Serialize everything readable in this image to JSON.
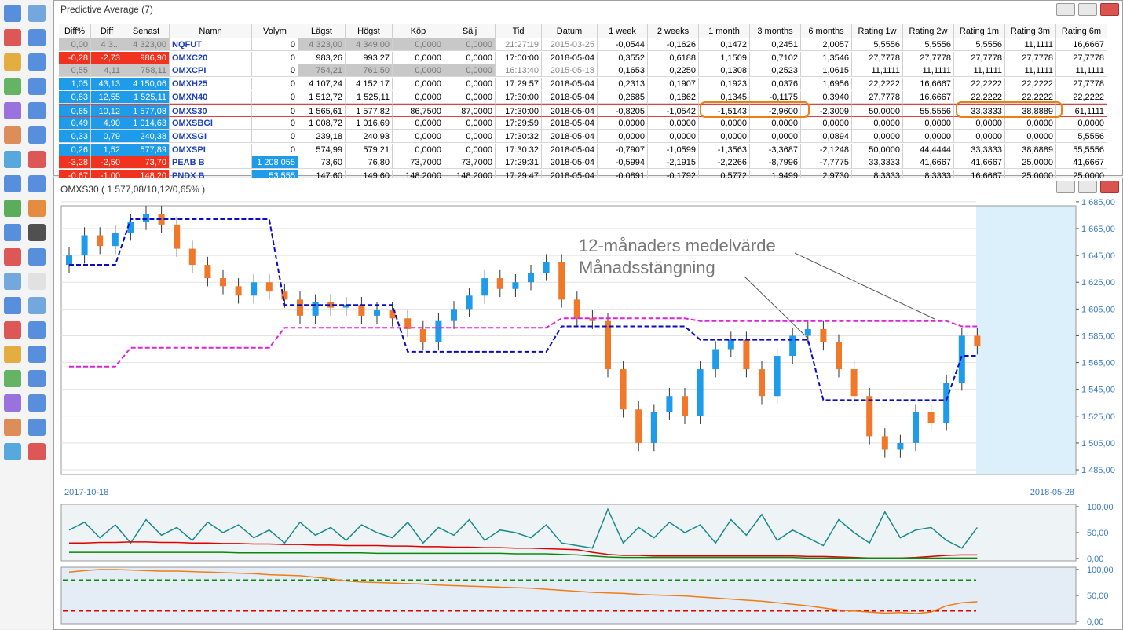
{
  "window": {
    "title": "Predictive Average (7)"
  },
  "table": {
    "columns": [
      "Diff%",
      "Diff",
      "Senast",
      "Namn",
      "Volym",
      "Lägst",
      "Högst",
      "Köp",
      "Sälj",
      "Tid",
      "Datum",
      "1 week",
      "2 weeks",
      "1 month",
      "3 months",
      "6 months",
      "Rating 1w",
      "Rating 2w",
      "Rating 1m",
      "Rating 3m",
      "Rating 6m"
    ],
    "rows": [
      [
        "0,00",
        "4 3...",
        "4 323,00",
        "NQFUT",
        "0",
        "4 323,00",
        "4 349,00",
        "0,0000",
        "0,0000",
        "21:27:19",
        "2015-03-25",
        "-0,0544",
        "-0,1626",
        "0,1472",
        "0,2451",
        "2,0057",
        "5,5556",
        "5,5556",
        "5,5556",
        "11,1111",
        "16,6667"
      ],
      [
        "-0,28",
        "-2,73",
        "986,90",
        "OMXC20",
        "0",
        "983,26",
        "993,27",
        "0,0000",
        "0,0000",
        "17:00:00",
        "2018-05-04",
        "0,3552",
        "0,6188",
        "1,1509",
        "0,7102",
        "1,3546",
        "27,7778",
        "27,7778",
        "27,7778",
        "27,7778",
        "27,7778"
      ],
      [
        "0,55",
        "4,11",
        "758,11",
        "OMXCPI",
        "0",
        "754,21",
        "761,50",
        "0,0000",
        "0,0000",
        "16:13:40",
        "2015-05-18",
        "0,1653",
        "0,2250",
        "0,1308",
        "0,2523",
        "1,0615",
        "11,1111",
        "11,1111",
        "11,1111",
        "11,1111",
        "11,1111"
      ],
      [
        "1,05",
        "43,13",
        "4 150,06",
        "OMXH25",
        "0",
        "4 107,24",
        "4 152,17",
        "0,0000",
        "0,0000",
        "17:29:57",
        "2018-05-04",
        "0,2313",
        "0,1907",
        "0,1923",
        "0,0376",
        "1,6956",
        "22,2222",
        "16,6667",
        "22,2222",
        "22,2222",
        "27,7778"
      ],
      [
        "0,83",
        "12,55",
        "1 525,11",
        "OMXN40",
        "0",
        "1 512,72",
        "1 525,11",
        "0,0000",
        "0,0000",
        "17:30:00",
        "2018-05-04",
        "0,2685",
        "0,1862",
        "0,1345",
        "-0,1175",
        "0,3940",
        "27,7778",
        "16,6667",
        "22,2222",
        "22,2222",
        "22,2222"
      ],
      [
        "0,65",
        "10,12",
        "1 577,08",
        "OMXS30",
        "0",
        "1 565,61",
        "1 577,82",
        "86,7500",
        "87,0000",
        "17:30:00",
        "2018-05-04",
        "-0,8205",
        "-1,0542",
        "-1,5143",
        "-2,9600",
        "-2,3009",
        "50,0000",
        "55,5556",
        "33,3333",
        "38,8889",
        "61,1111"
      ],
      [
        "0,49",
        "4,90",
        "1 014,63",
        "OMXSBGI",
        "0",
        "1 008,72",
        "1 016,69",
        "0,0000",
        "0,0000",
        "17:29:59",
        "2018-05-04",
        "0,0000",
        "0,0000",
        "0,0000",
        "0,0000",
        "0,0000",
        "0,0000",
        "0,0000",
        "0,0000",
        "0,0000",
        "0,0000"
      ],
      [
        "0,33",
        "0,79",
        "240,38",
        "OMXSGI",
        "0",
        "239,18",
        "240,93",
        "0,0000",
        "0,0000",
        "17:30:32",
        "2018-05-04",
        "0,0000",
        "0,0000",
        "0,0000",
        "0,0000",
        "0,0894",
        "0,0000",
        "0,0000",
        "0,0000",
        "0,0000",
        "5,5556"
      ],
      [
        "0,26",
        "1,52",
        "577,89",
        "OMXSPI",
        "0",
        "574,99",
        "579,21",
        "0,0000",
        "0,0000",
        "17:30:32",
        "2018-05-04",
        "-0,7907",
        "-1,0599",
        "-1,3563",
        "-3,3687",
        "-2,1248",
        "50,0000",
        "44,4444",
        "33,3333",
        "38,8889",
        "55,5556"
      ],
      [
        "-3,28",
        "-2,50",
        "73,70",
        "PEAB B",
        "1 208 055",
        "73,60",
        "76,80",
        "73,7000",
        "73,7000",
        "17:29:31",
        "2018-05-04",
        "-0,5994",
        "-2,1915",
        "-2,2266",
        "-8,7996",
        "-7,7775",
        "33,3333",
        "41,6667",
        "41,6667",
        "25,0000",
        "41,6667"
      ],
      [
        "-0,67",
        "-1,00",
        "148,20",
        "PNDX B",
        "53 555",
        "147,60",
        "149,60",
        "148,2000",
        "148,2000",
        "17:29:47",
        "2018-05-04",
        "-0,0891",
        "-0,1792",
        "0,5772",
        "1,9499",
        "2,9730",
        "8,3333",
        "8,3333",
        "16,6667",
        "25,0000",
        "25,0000"
      ]
    ]
  },
  "chart_data": [
    {
      "type": "candlestick",
      "title": "OMXS30 ( 1 577,08/10,12/0,65% )",
      "up_color": "#1e9be9",
      "down_color": "#f07828",
      "open": [
        1638,
        1645,
        1660,
        1652,
        1662,
        1670,
        1676,
        1668,
        1650,
        1638,
        1628,
        1622,
        1615,
        1625,
        1618,
        1612,
        1600,
        1610,
        1606,
        1608,
        1600,
        1604,
        1598,
        1590,
        1580,
        1596,
        1605,
        1615,
        1628,
        1620,
        1625,
        1632,
        1640,
        1612,
        1598,
        1596,
        1560,
        1530,
        1505,
        1528,
        1540,
        1525,
        1560,
        1575,
        1582,
        1560,
        1540,
        1570,
        1585,
        1590,
        1580,
        1560,
        1540,
        1510,
        1500,
        1505,
        1528,
        1520,
        1550,
        1585
      ],
      "high": [
        1651,
        1666,
        1666,
        1668,
        1676,
        1682,
        1682,
        1674,
        1656,
        1644,
        1634,
        1628,
        1631,
        1631,
        1624,
        1618,
        1616,
        1616,
        1614,
        1614,
        1610,
        1610,
        1604,
        1596,
        1602,
        1611,
        1621,
        1634,
        1634,
        1631,
        1638,
        1646,
        1646,
        1618,
        1604,
        1602,
        1566,
        1536,
        1534,
        1546,
        1546,
        1566,
        1581,
        1588,
        1588,
        1566,
        1576,
        1591,
        1596,
        1596,
        1586,
        1566,
        1546,
        1516,
        1511,
        1534,
        1534,
        1556,
        1591,
        1591
      ],
      "low": [
        1632,
        1639,
        1646,
        1646,
        1656,
        1664,
        1662,
        1644,
        1632,
        1622,
        1616,
        1609,
        1609,
        1612,
        1606,
        1594,
        1594,
        1600,
        1600,
        1594,
        1594,
        1592,
        1584,
        1574,
        1574,
        1590,
        1599,
        1609,
        1614,
        1614,
        1619,
        1626,
        1606,
        1592,
        1590,
        1554,
        1524,
        1499,
        1499,
        1522,
        1519,
        1519,
        1554,
        1569,
        1554,
        1534,
        1534,
        1564,
        1579,
        1574,
        1554,
        1534,
        1504,
        1494,
        1494,
        1499,
        1514,
        1514,
        1544,
        1571
      ],
      "close": [
        1645,
        1660,
        1652,
        1662,
        1670,
        1676,
        1668,
        1650,
        1638,
        1628,
        1622,
        1615,
        1625,
        1618,
        1612,
        1600,
        1610,
        1606,
        1608,
        1600,
        1604,
        1598,
        1590,
        1580,
        1596,
        1605,
        1615,
        1628,
        1620,
        1625,
        1632,
        1640,
        1612,
        1598,
        1596,
        1560,
        1530,
        1505,
        1528,
        1540,
        1525,
        1560,
        1575,
        1582,
        1560,
        1540,
        1570,
        1585,
        1590,
        1580,
        1560,
        1540,
        1510,
        1500,
        1505,
        1528,
        1520,
        1550,
        1585,
        1577
      ],
      "series": [
        {
          "color": "#0a0ac8",
          "values": [
            1638,
            1638,
            1638,
            1638,
            1672,
            1672,
            1672,
            1672,
            1672,
            1672,
            1672,
            1672,
            1672,
            1672,
            1608,
            1608,
            1608,
            1608,
            1608,
            1608,
            1608,
            1608,
            1573,
            1573,
            1573,
            1573,
            1573,
            1573,
            1573,
            1573,
            1573,
            1573,
            1592,
            1592,
            1592,
            1592,
            1592,
            1592,
            1592,
            1592,
            1592,
            1582,
            1582,
            1582,
            1582,
            1582,
            1582,
            1582,
            1582,
            1537,
            1537,
            1537,
            1537,
            1537,
            1537,
            1537,
            1537,
            1537,
            1570,
            1570
          ]
        },
        {
          "color": "#e020e0",
          "values": [
            1562,
            1562,
            1562,
            1562,
            1576,
            1576,
            1576,
            1576,
            1576,
            1576,
            1576,
            1576,
            1576,
            1576,
            1591,
            1591,
            1591,
            1591,
            1591,
            1591,
            1591,
            1591,
            1591,
            1591,
            1591,
            1591,
            1591,
            1591,
            1591,
            1591,
            1591,
            1591,
            1598,
            1598,
            1598,
            1598,
            1598,
            1598,
            1598,
            1598,
            1598,
            1596,
            1596,
            1596,
            1596,
            1596,
            1596,
            1596,
            1596,
            1596,
            1596,
            1596,
            1596,
            1596,
            1596,
            1596,
            1596,
            1596,
            1592,
            1592
          ]
        }
      ],
      "annotations": [
        "12-månaders medelvärde",
        "Månadsstängning"
      ],
      "x_range_labels": [
        "2017-10-18",
        "2018-05-28"
      ],
      "ylim": [
        1481.5,
        1682
      ],
      "yticks": [
        {
          "value": 1485,
          "label": "1 485,00"
        },
        {
          "value": 1505,
          "label": "1 505,00"
        },
        {
          "value": 1525,
          "label": "1 525,00"
        },
        {
          "value": 1545,
          "label": "1 545,00"
        },
        {
          "value": 1565,
          "label": "1 565,00"
        },
        {
          "value": 1585,
          "label": "1 585,00"
        },
        {
          "value": 1605,
          "label": "1 605,00"
        },
        {
          "value": 1625,
          "label": "1 625,00"
        },
        {
          "value": 1645,
          "label": "1 645,00"
        },
        {
          "value": 1665,
          "label": "1 665,00"
        },
        {
          "value": 1685,
          "label": "1 685,00"
        }
      ],
      "grid": true
    },
    {
      "type": "line",
      "ylim": [
        0,
        100
      ],
      "yticks": [
        {
          "value": 0,
          "label": "0,00"
        },
        {
          "value": 50,
          "label": "50,00"
        },
        {
          "value": 100,
          "label": "100,00"
        }
      ],
      "series": [
        {
          "color": "#1a8a8a",
          "values": [
            55,
            70,
            40,
            65,
            30,
            75,
            45,
            60,
            35,
            70,
            50,
            65,
            40,
            55,
            30,
            70,
            45,
            60,
            35,
            65,
            50,
            40,
            70,
            30,
            60,
            45,
            75,
            35,
            55,
            50,
            40,
            65,
            30,
            25,
            20,
            95,
            30,
            60,
            40,
            70,
            50,
            65,
            30,
            75,
            45,
            85,
            35,
            55,
            40,
            25,
            75,
            50,
            30,
            90,
            40,
            55,
            60,
            35,
            20,
            60
          ]
        },
        {
          "color": "#e00000",
          "values": [
            30,
            30,
            31,
            31,
            32,
            32,
            31,
            31,
            30,
            30,
            29,
            29,
            28,
            28,
            27,
            27,
            26,
            26,
            25,
            25,
            25,
            24,
            24,
            23,
            23,
            22,
            22,
            21,
            21,
            20,
            20,
            19,
            18,
            17,
            12,
            8,
            6,
            6,
            5,
            5,
            5,
            5,
            5,
            5,
            5,
            5,
            5,
            5,
            4,
            4,
            3,
            2,
            1,
            1,
            1,
            2,
            4,
            6,
            7,
            7
          ]
        },
        {
          "color": "#0a8a0a",
          "values": [
            12,
            12,
            12,
            12,
            12,
            12,
            12,
            12,
            12,
            12,
            12,
            11,
            11,
            11,
            11,
            11,
            11,
            11,
            11,
            11,
            10,
            10,
            10,
            10,
            10,
            10,
            10,
            10,
            10,
            9,
            9,
            9,
            8,
            7,
            5,
            3,
            2,
            2,
            2,
            2,
            2,
            2,
            2,
            2,
            2,
            2,
            2,
            2,
            1,
            1,
            1,
            1,
            1,
            1,
            1,
            1,
            1,
            1,
            1,
            1
          ]
        }
      ]
    },
    {
      "type": "line",
      "ylim": [
        0,
        100
      ],
      "yticks": [
        {
          "value": 0,
          "label": "0,00"
        },
        {
          "value": 50,
          "label": "50,00"
        },
        {
          "value": 100,
          "label": "100,00"
        }
      ],
      "levels": [
        {
          "value": 80,
          "color": "#0a8a0a"
        },
        {
          "value": 20,
          "color": "#e00000"
        }
      ],
      "series": [
        {
          "color": "#f07c14",
          "values": [
            95,
            98,
            100,
            100,
            99,
            98,
            97,
            97,
            96,
            95,
            94,
            93,
            92,
            90,
            89,
            88,
            85,
            82,
            78,
            76,
            75,
            74,
            73,
            72,
            70,
            69,
            68,
            67,
            66,
            65,
            64,
            62,
            60,
            58,
            56,
            55,
            54,
            52,
            51,
            50,
            49,
            47,
            45,
            43,
            41,
            39,
            36,
            33,
            30,
            26,
            22,
            20,
            18,
            16,
            17,
            15,
            18,
            30,
            36,
            38
          ]
        }
      ]
    }
  ]
}
